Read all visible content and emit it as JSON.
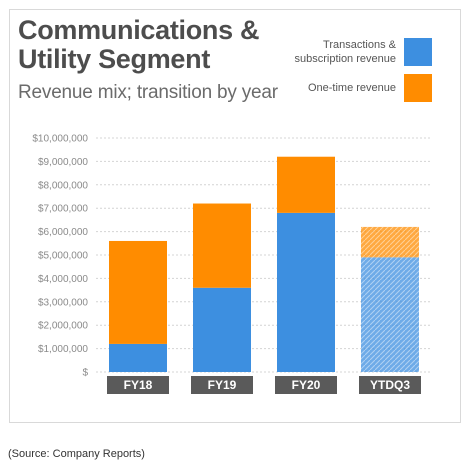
{
  "title": "Communications & Utility Segment",
  "subtitle": "Revenue mix; transition by year",
  "source": "(Source: Company Reports)",
  "colors": {
    "transactions": "#3d8fe0",
    "one_time": "#ff8c00",
    "axis_label_bg": "#5a5a5a"
  },
  "chart_data": {
    "type": "bar",
    "stacked": true,
    "categories": [
      "FY18",
      "FY19",
      "FY20",
      "YTDQ3"
    ],
    "series": [
      {
        "name": "Transactions & subscription revenue",
        "values": [
          1200000,
          3600000,
          6800000,
          4900000
        ]
      },
      {
        "name": "One-time revenue",
        "values": [
          4400000,
          3600000,
          2400000,
          1300000
        ]
      }
    ],
    "ylim": [
      0,
      10000000
    ],
    "yticks": [
      "$",
      "$1,000,000",
      "$2,000,000",
      "$3,000,000",
      "$4,000,000",
      "$5,000,000",
      "$6,000,000",
      "$7,000,000",
      "$8,000,000",
      "$9,000,000",
      "$10,000,000"
    ],
    "hatched_category": "YTDQ3",
    "legend_position": "top-right",
    "grid": true
  }
}
